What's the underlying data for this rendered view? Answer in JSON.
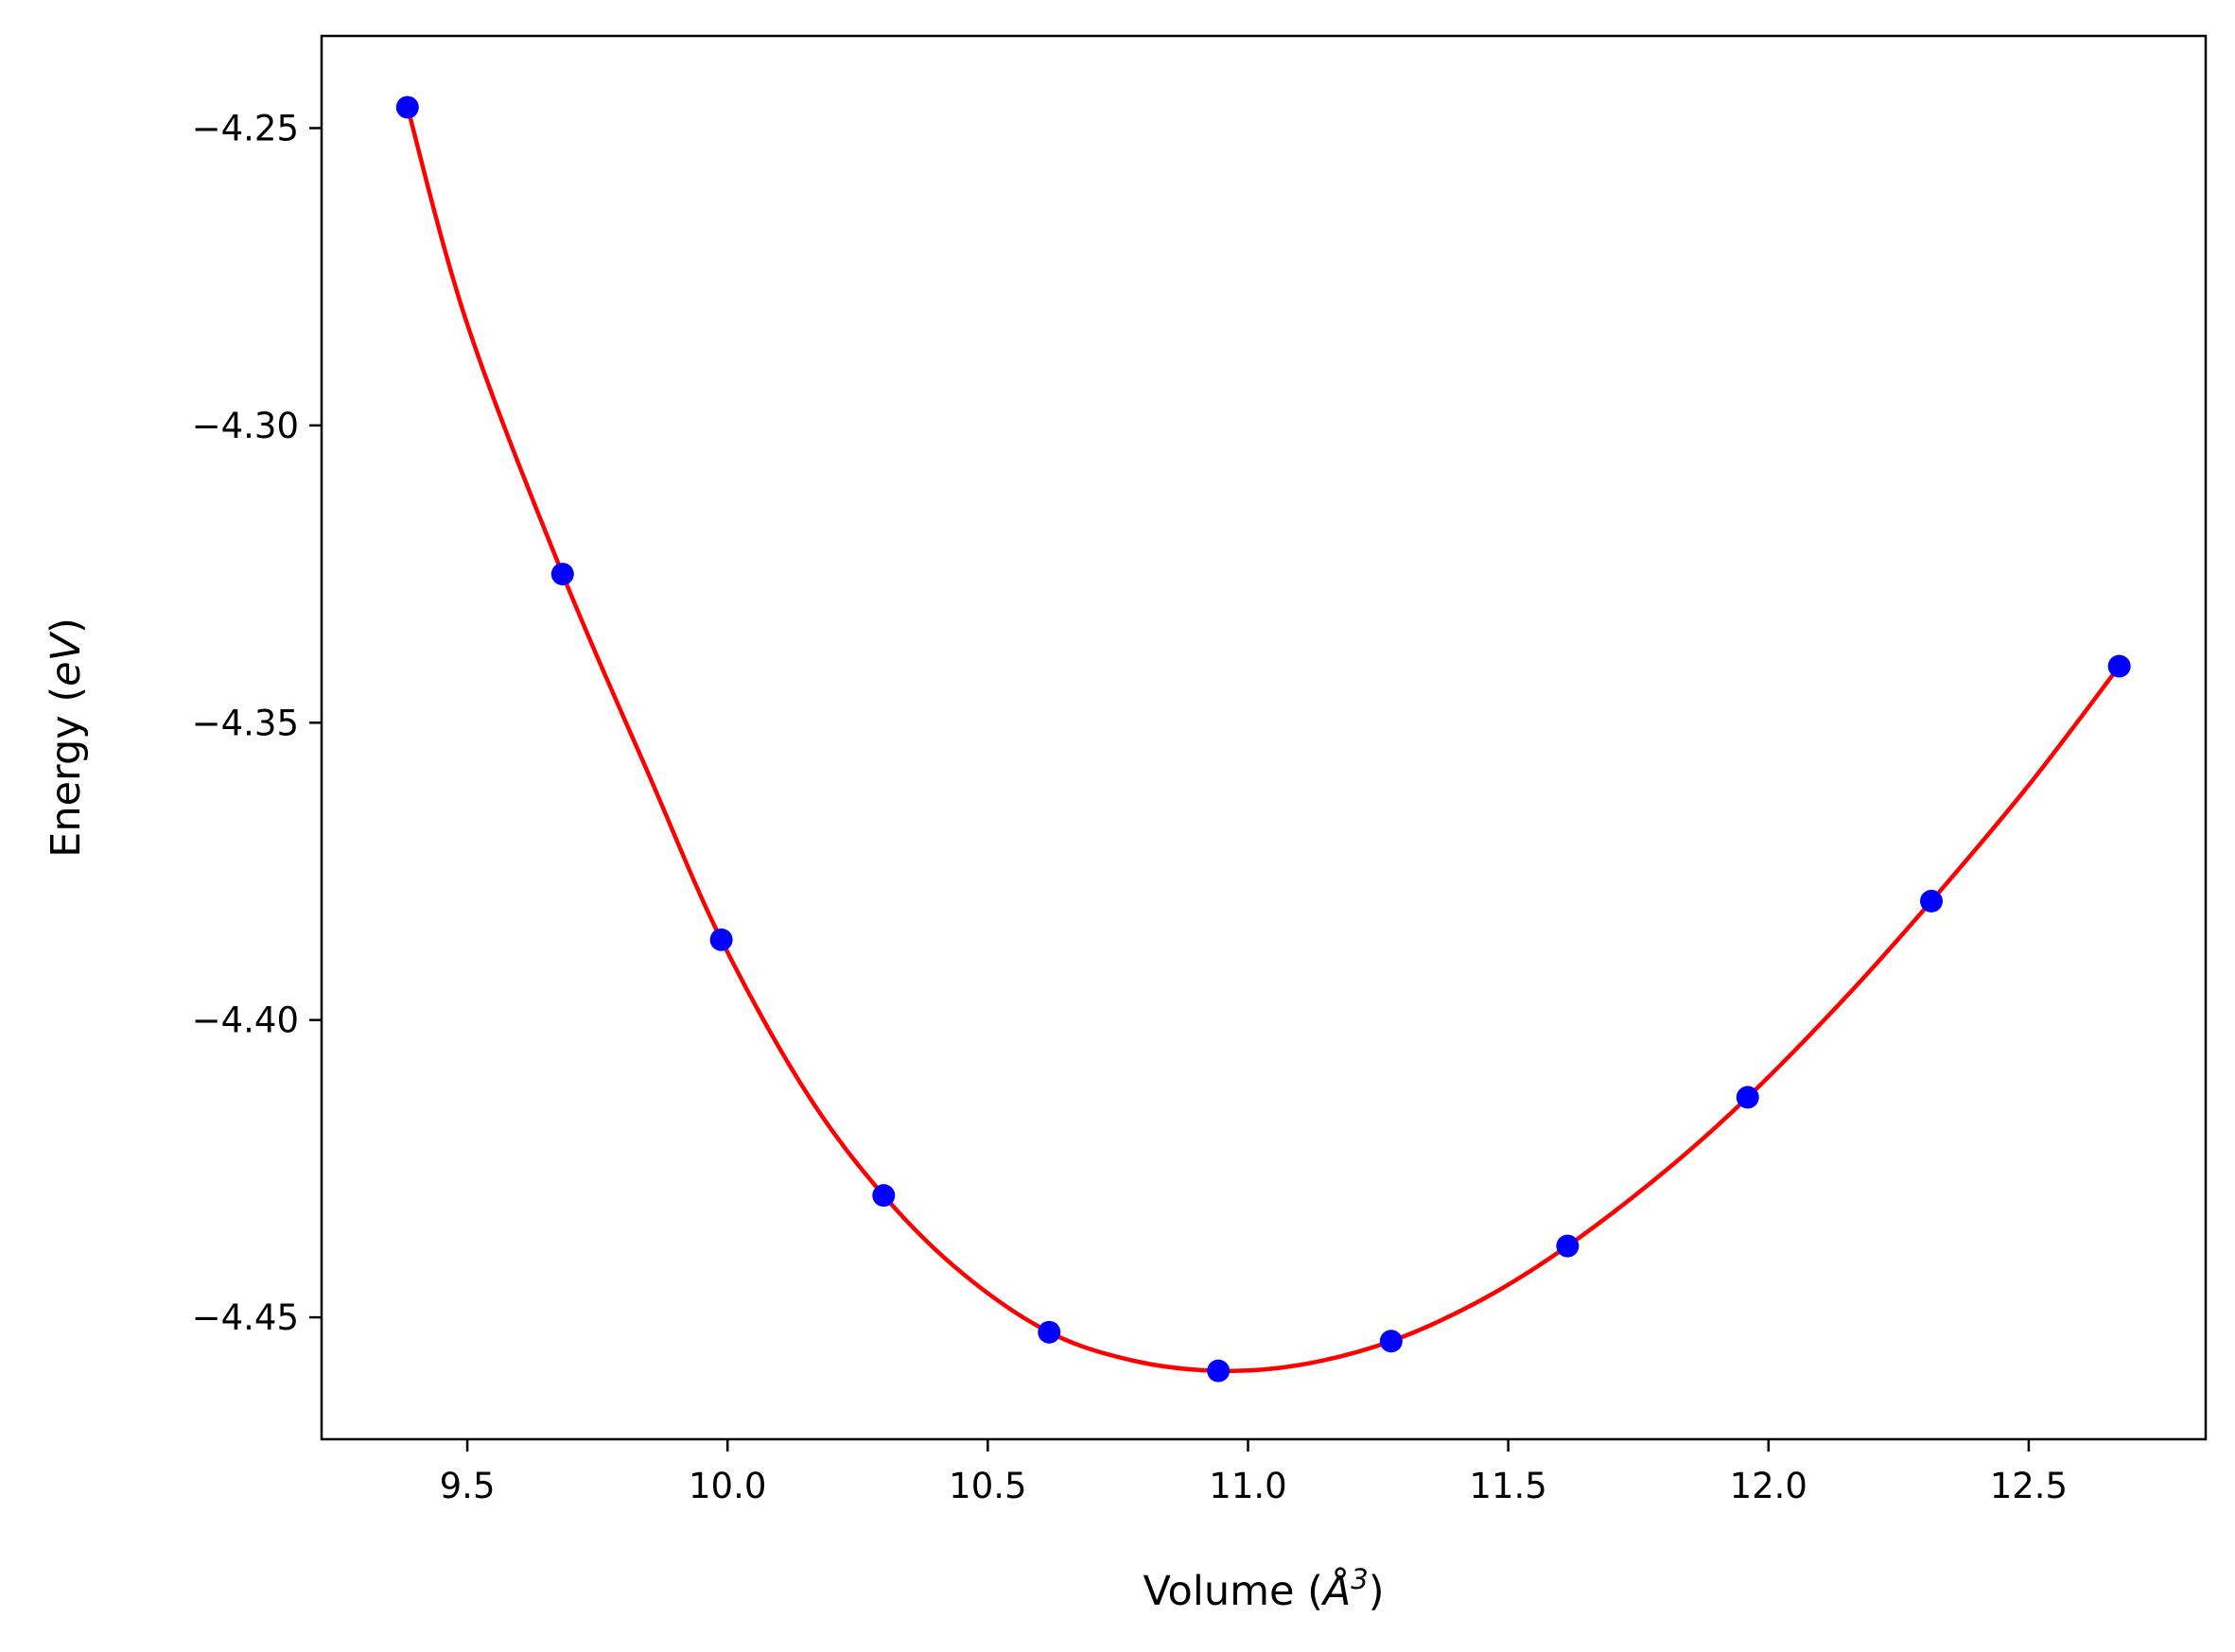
{
  "chart_data": {
    "type": "scatter",
    "xlabel": "Volume (Å³)",
    "xlabel_parts": {
      "prefix": "Volume (",
      "symbol": "Å",
      "power": "3",
      "suffix": ")"
    },
    "ylabel": "Energy (eV)",
    "ylabel_parts": {
      "prefix": "Energy (",
      "unit": "eV",
      "suffix": ")"
    },
    "xlim": [
      9.22,
      12.84
    ],
    "ylim": [
      -4.4705,
      -4.2345
    ],
    "x_ticks": [
      9.5,
      10.0,
      10.5,
      11.0,
      11.5,
      12.0,
      12.5
    ],
    "x_tick_labels": [
      "9.5",
      "10.0",
      "10.5",
      "11.0",
      "11.5",
      "12.0",
      "12.5"
    ],
    "y_ticks": [
      -4.25,
      -4.3,
      -4.35,
      -4.4,
      -4.45
    ],
    "y_tick_labels": [
      "−4.25",
      "−4.30",
      "−4.35",
      "−4.40",
      "−4.45"
    ],
    "grid": false,
    "series": [
      {
        "kind": "points",
        "color": "#0000ff",
        "x": [
          9.385,
          9.683,
          9.988,
          10.3,
          10.618,
          10.943,
          11.275,
          11.614,
          11.96,
          12.313,
          12.674
        ],
        "y": [
          -4.2465,
          -4.325,
          -4.3865,
          -4.4295,
          -4.4525,
          -4.459,
          -4.454,
          -4.438,
          -4.413,
          -4.38,
          -4.3405
        ]
      },
      {
        "kind": "fit-line",
        "color": "#ff0000",
        "x": [
          9.385,
          9.5,
          9.683,
          9.85,
          9.988,
          10.15,
          10.3,
          10.45,
          10.618,
          10.78,
          10.943,
          11.1,
          11.275,
          11.45,
          11.614,
          11.8,
          11.96,
          12.15,
          12.313,
          12.5,
          12.674
        ],
        "y": [
          -4.2465,
          -4.283,
          -4.325,
          -4.359,
          -4.3865,
          -4.412,
          -4.4295,
          -4.4425,
          -4.4525,
          -4.4573,
          -4.459,
          -4.458,
          -4.454,
          -4.447,
          -4.438,
          -4.4255,
          -4.413,
          -4.396,
          -4.38,
          -4.3605,
          -4.3405
        ]
      }
    ]
  }
}
